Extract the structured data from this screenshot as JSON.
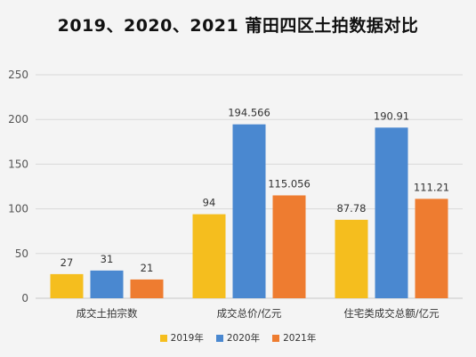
{
  "chart_data": {
    "type": "bar",
    "title": "2019、2020、2021 莆田四区土拍数据对比",
    "categories": [
      "成交土拍宗数",
      "成交总价/亿元",
      "住宅类成交总额/亿元"
    ],
    "series": [
      {
        "name": "2019年",
        "values": [
          27,
          94,
          87.78
        ],
        "labels": [
          "27",
          "94",
          "87.78"
        ],
        "color": "#F5BE1E"
      },
      {
        "name": "2020年",
        "values": [
          31,
          194.566,
          190.91
        ],
        "labels": [
          "31",
          "194.566",
          "190.91"
        ],
        "color": "#4A88D0"
      },
      {
        "name": "2021年",
        "values": [
          21,
          115.056,
          111.21
        ],
        "labels": [
          "21",
          "115.056",
          "111.21"
        ],
        "color": "#EE7C30"
      }
    ],
    "ylim": [
      0,
      250
    ],
    "yticks": [
      "0",
      "50",
      "100",
      "150",
      "200",
      "250"
    ],
    "grid": true,
    "legend_position": "bottom"
  }
}
